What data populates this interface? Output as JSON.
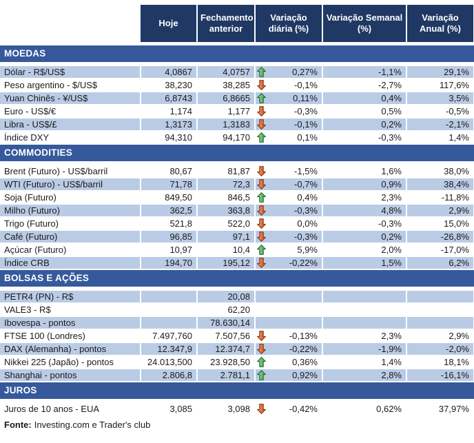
{
  "table": {
    "columns": [
      {
        "key": "label",
        "label": ""
      },
      {
        "key": "hoje",
        "label": "Hoje"
      },
      {
        "key": "fechamento",
        "label": "Fechamento anterior"
      },
      {
        "key": "var_diaria",
        "label": "Variação diária (%)"
      },
      {
        "key": "var_semanal",
        "label": "Variação Semanal (%)"
      },
      {
        "key": "var_anual",
        "label": "Variação Anual (%)"
      }
    ],
    "sections": [
      {
        "title": "MOEDAS",
        "rows": [
          {
            "label": "Dólar - R$/US$",
            "hoje": "4,0867",
            "fechamento": "4,0757",
            "arrow": "up",
            "var_diaria": "0,27%",
            "var_semanal": "-1,1%",
            "var_anual": "29,1%"
          },
          {
            "label": "Peso argentino - $/US$",
            "hoje": "38,230",
            "fechamento": "38,285",
            "arrow": "down",
            "var_diaria": "-0,1%",
            "var_semanal": "-2,7%",
            "var_anual": "117,6%"
          },
          {
            "label": "Yuan Chinês - ¥/US$",
            "hoje": "6,8743",
            "fechamento": "6,8665",
            "arrow": "up",
            "var_diaria": "0,11%",
            "var_semanal": "0,4%",
            "var_anual": "3,5%"
          },
          {
            "label": "Euro - US$/€",
            "hoje": "1,174",
            "fechamento": "1,177",
            "arrow": "down",
            "var_diaria": "-0,3%",
            "var_semanal": "0,5%",
            "var_anual": "-0,5%"
          },
          {
            "label": "Libra - US$/£",
            "hoje": "1,3173",
            "fechamento": "1,3183",
            "arrow": "down",
            "var_diaria": "-0,1%",
            "var_semanal": "0,2%",
            "var_anual": "-2,1%"
          },
          {
            "label": "Índice DXY",
            "hoje": "94,310",
            "fechamento": "94,170",
            "arrow": "up",
            "var_diaria": "0,1%",
            "var_semanal": "-0,3%",
            "var_anual": "1,4%"
          }
        ]
      },
      {
        "title": "COMMODITIES",
        "rows": [
          {
            "label": "Brent (Futuro) - US$/barril",
            "hoje": "80,67",
            "fechamento": "81,87",
            "arrow": "down",
            "var_diaria": "-1,5%",
            "var_semanal": "1,6%",
            "var_anual": "38,0%"
          },
          {
            "label": "WTI (Futuro) - US$/barril",
            "hoje": "71,78",
            "fechamento": "72,3",
            "arrow": "down",
            "var_diaria": "-0,7%",
            "var_semanal": "0,9%",
            "var_anual": "38,4%"
          },
          {
            "label": "Soja (Futuro)",
            "hoje": "849,50",
            "fechamento": "846,5",
            "arrow": "up",
            "var_diaria": "0,4%",
            "var_semanal": "2,3%",
            "var_anual": "-11,8%"
          },
          {
            "label": "Milho (Futuro)",
            "hoje": "362,5",
            "fechamento": "363,8",
            "arrow": "down",
            "var_diaria": "-0,3%",
            "var_semanal": "4,8%",
            "var_anual": "2,9%"
          },
          {
            "label": "Trigo (Futuro)",
            "hoje": "521,8",
            "fechamento": "522,0",
            "arrow": "down",
            "var_diaria": "0,0%",
            "var_semanal": "-0,3%",
            "var_anual": "15,0%"
          },
          {
            "label": "Café (Futuro)",
            "hoje": "96,85",
            "fechamento": "97,1",
            "arrow": "down",
            "var_diaria": "-0,3%",
            "var_semanal": "0,2%",
            "var_anual": "-26,8%"
          },
          {
            "label": "Açúcar (Futuro)",
            "hoje": "10,97",
            "fechamento": "10,4",
            "arrow": "up",
            "var_diaria": "5,9%",
            "var_semanal": "2,0%",
            "var_anual": "-17,0%"
          },
          {
            "label": "Índice CRB",
            "hoje": "194,70",
            "fechamento": "195,12",
            "arrow": "down",
            "var_diaria": "-0,22%",
            "var_semanal": "1,5%",
            "var_anual": "6,2%"
          }
        ]
      },
      {
        "title": "BOLSAS E AÇÕES",
        "rows": [
          {
            "label": "PETR4 (PN) - R$",
            "hoje": "",
            "fechamento": "20,08",
            "arrow": "",
            "var_diaria": "",
            "var_semanal": "",
            "var_anual": ""
          },
          {
            "label": "VALE3 - R$",
            "hoje": "",
            "fechamento": "62,20",
            "arrow": "",
            "var_diaria": "",
            "var_semanal": "",
            "var_anual": ""
          },
          {
            "label": "Ibovespa - pontos",
            "hoje": "",
            "fechamento": "78.630,14",
            "arrow": "",
            "var_diaria": "",
            "var_semanal": "",
            "var_anual": ""
          },
          {
            "label": "FTSE 100 (Londres)",
            "hoje": "7.497,760",
            "fechamento": "7.507,56",
            "arrow": "down",
            "var_diaria": "-0,13%",
            "var_semanal": "2,3%",
            "var_anual": "2,9%"
          },
          {
            "label": "DAX (Alemanha) - pontos",
            "hoje": "12.347,9",
            "fechamento": "12.374,7",
            "arrow": "down",
            "var_diaria": "-0,22%",
            "var_semanal": "-1,9%",
            "var_anual": "-2,0%"
          },
          {
            "label": "Nikkei 225 (Japão) - pontos",
            "hoje": "24.013,500",
            "fechamento": "23.928,50",
            "arrow": "up",
            "var_diaria": "0,36%",
            "var_semanal": "1,4%",
            "var_anual": "18,1%"
          },
          {
            "label": "Shanghai - pontos",
            "hoje": "2.806,8",
            "fechamento": "2.781,1",
            "arrow": "up",
            "var_diaria": "0,92%",
            "var_semanal": "2,8%",
            "var_anual": "-16,1%"
          }
        ]
      },
      {
        "title": "JUROS",
        "rows": [
          {
            "label": "Juros de 10 anos - EUA",
            "hoje": "3,085",
            "fechamento": "3,098",
            "arrow": "down",
            "var_diaria": "-0,42%",
            "var_semanal": "0,62%",
            "var_anual": "37,97%"
          }
        ]
      }
    ]
  },
  "footer": {
    "label": "Fonte:",
    "text": "Investing.com e Trader's club"
  },
  "colors": {
    "header_bg": "#1F3864",
    "section_bg": "#35599B",
    "row_shaded": "#BACBE5",
    "row_plain": "#FFFFFF",
    "arrow_up_fill_light": "#A6DCA6",
    "arrow_up_fill_dark": "#3E9C42",
    "arrow_up_stroke": "#1F6B2A",
    "arrow_down_fill_light": "#F4A475",
    "arrow_down_fill_dark": "#C64A17",
    "arrow_down_stroke": "#8A3511"
  }
}
